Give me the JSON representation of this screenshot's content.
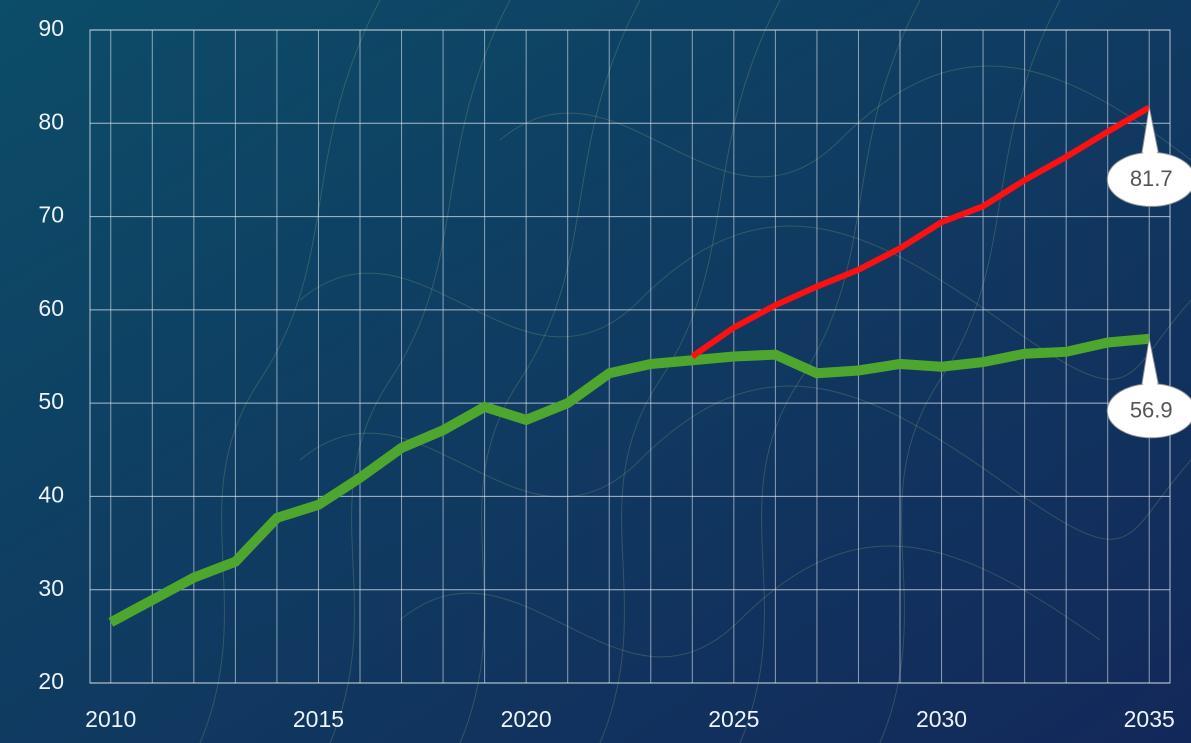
{
  "chart_data": {
    "type": "line",
    "x": [
      2010,
      2011,
      2012,
      2013,
      2014,
      2015,
      2016,
      2017,
      2018,
      2019,
      2020,
      2021,
      2022,
      2023,
      2024,
      2025,
      2026,
      2027,
      2028,
      2029,
      2030,
      2031,
      2032,
      2033,
      2034,
      2035
    ],
    "series": [
      {
        "color": "#4ea62e",
        "width": 10,
        "values": [
          26.5,
          28.9,
          31.3,
          33.0,
          37.7,
          39.1,
          42.0,
          45.2,
          47.1,
          49.6,
          48.2,
          50.0,
          53.2,
          54.2,
          54.6,
          55.0,
          55.2,
          53.2,
          53.5,
          54.2,
          53.9,
          54.4,
          55.3,
          55.5,
          56.5,
          56.9
        ],
        "value_labels": [
          null,
          null,
          null,
          null,
          null,
          null,
          null,
          null,
          null,
          null,
          null,
          null,
          null,
          null,
          null,
          null,
          null,
          null,
          null,
          null,
          null,
          null,
          null,
          null,
          null,
          "56.9"
        ]
      },
      {
        "color": "#ff1010",
        "width": 6,
        "values": [
          null,
          null,
          null,
          null,
          null,
          null,
          null,
          null,
          null,
          null,
          null,
          null,
          null,
          null,
          55.0,
          58.1,
          60.5,
          62.5,
          64.3,
          66.6,
          69.4,
          71.1,
          73.9,
          76.4,
          79.1,
          81.7
        ],
        "value_labels": [
          null,
          null,
          null,
          null,
          null,
          null,
          null,
          null,
          null,
          null,
          null,
          null,
          null,
          null,
          null,
          null,
          null,
          null,
          null,
          null,
          null,
          null,
          null,
          null,
          null,
          "81.7"
        ]
      }
    ],
    "xlim": [
      2009.5,
      2035.5
    ],
    "xticks": [
      2010,
      2015,
      2020,
      2025,
      2030,
      2035
    ],
    "ylim": [
      20,
      90
    ],
    "yticks": [
      20,
      30,
      40,
      50,
      60,
      70,
      80,
      90
    ],
    "grid": true
  }
}
